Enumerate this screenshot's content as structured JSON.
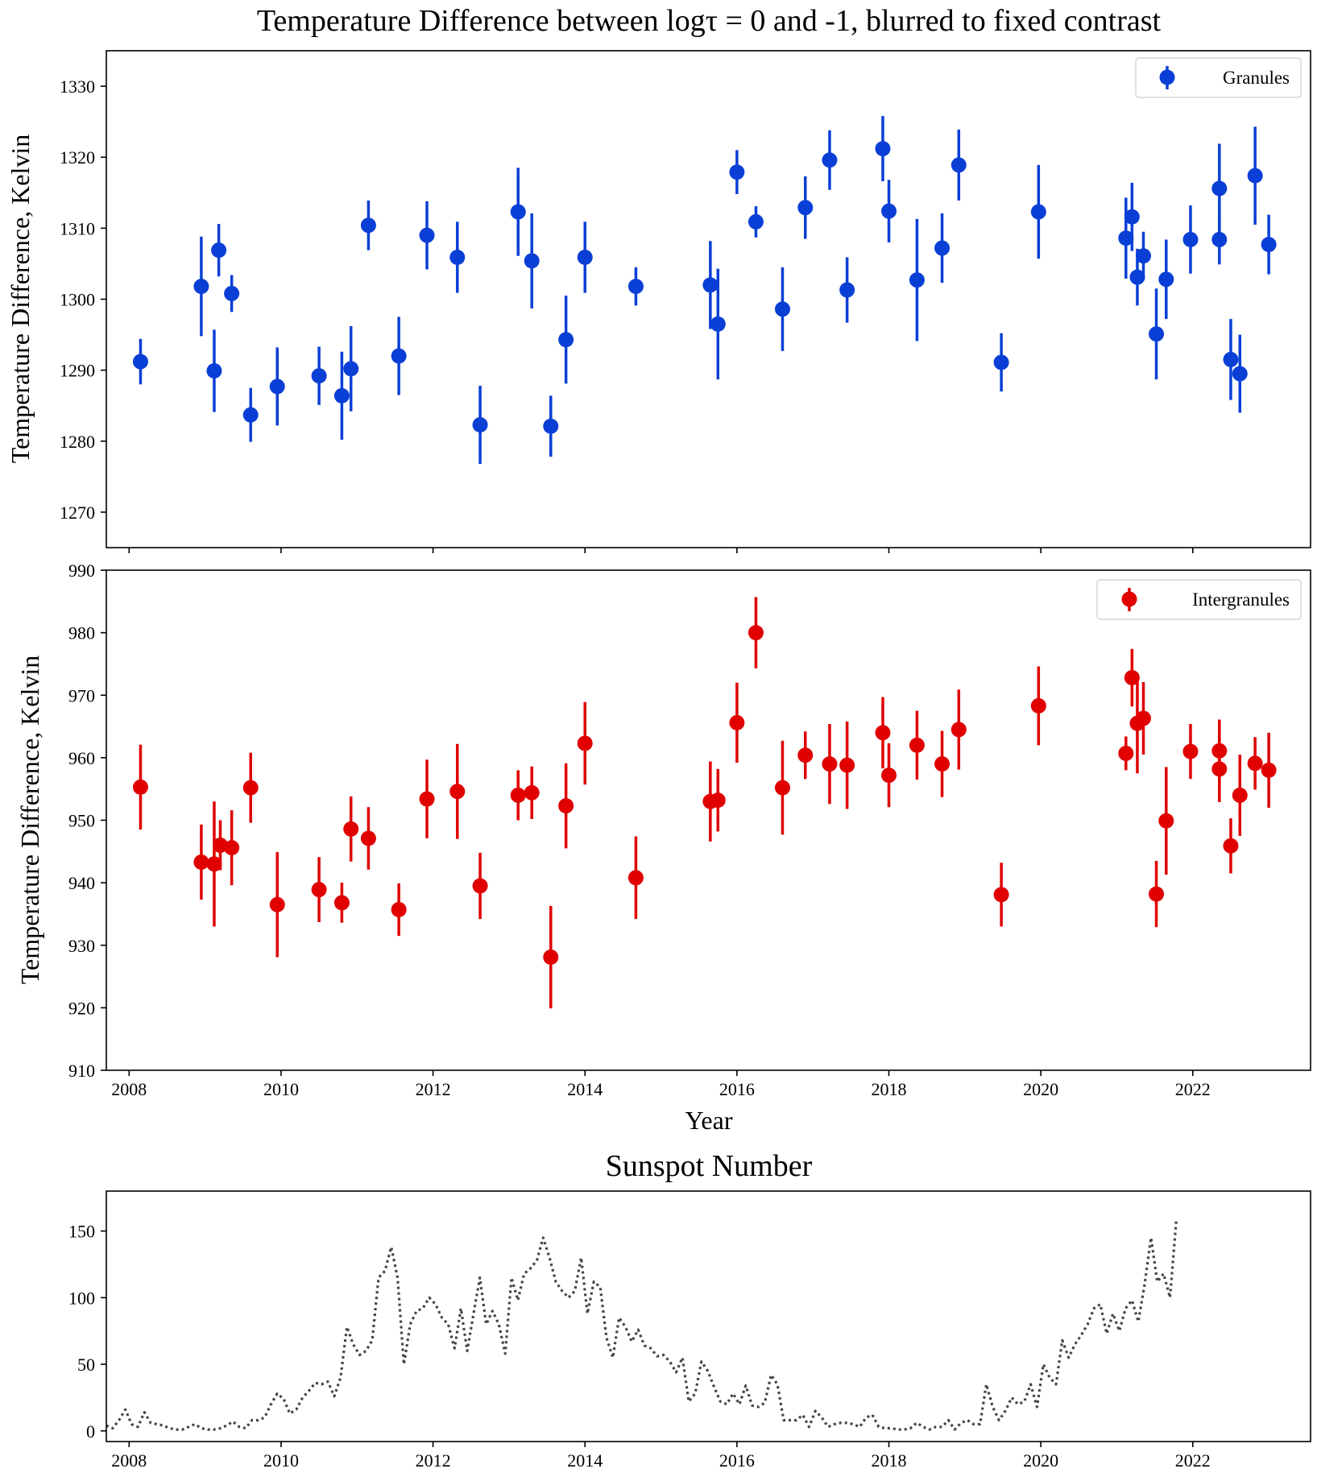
{
  "title": "Temperature Difference between logτ = 0 and -1, blurred to fixed contrast",
  "colors": {
    "granules": "#0a3fd6",
    "intergranules": "#e00000",
    "sunspot": "#444444"
  },
  "chart_data": [
    {
      "type": "scatter",
      "panel": "granules",
      "title": "Temperature Difference between logτ = 0 and -1, blurred to fixed contrast",
      "ylabel": "Temperature Difference, Kelvin",
      "xlim": [
        2007.7,
        2023.55
      ],
      "ylim": [
        1265,
        1335
      ],
      "yticks": [
        1270,
        1280,
        1290,
        1300,
        1310,
        1320,
        1330
      ],
      "xticks": [
        2008,
        2010,
        2012,
        2014,
        2016,
        2018,
        2020,
        2022
      ],
      "legend": {
        "label": "Granules",
        "position": "top-right"
      },
      "series": [
        {
          "name": "Granules",
          "points": [
            [
              2008.15,
              1291.2,
              3.2
            ],
            [
              2008.95,
              1301.8,
              7.0
            ],
            [
              2009.12,
              1289.9,
              5.8
            ],
            [
              2009.18,
              1306.9,
              3.7
            ],
            [
              2009.35,
              1300.8,
              2.6
            ],
            [
              2009.6,
              1283.7,
              3.8
            ],
            [
              2009.95,
              1287.7,
              5.5
            ],
            [
              2010.5,
              1289.2,
              4.1
            ],
            [
              2010.8,
              1286.4,
              6.2
            ],
            [
              2010.92,
              1290.2,
              6.0
            ],
            [
              2011.15,
              1310.4,
              3.5
            ],
            [
              2011.55,
              1292.0,
              5.5
            ],
            [
              2011.92,
              1309.0,
              4.8
            ],
            [
              2012.32,
              1305.9,
              5.0
            ],
            [
              2012.62,
              1282.3,
              5.5
            ],
            [
              2013.12,
              1312.3,
              6.2
            ],
            [
              2013.3,
              1305.4,
              6.7
            ],
            [
              2013.55,
              1282.1,
              4.3
            ],
            [
              2013.75,
              1294.3,
              6.2
            ],
            [
              2014.0,
              1305.9,
              5.0
            ],
            [
              2014.67,
              1301.8,
              2.7
            ],
            [
              2015.65,
              1302.0,
              6.2
            ],
            [
              2015.75,
              1296.5,
              7.8
            ],
            [
              2016.0,
              1317.9,
              3.1
            ],
            [
              2016.25,
              1310.9,
              2.2
            ],
            [
              2016.6,
              1298.6,
              5.9
            ],
            [
              2016.9,
              1312.9,
              4.4
            ],
            [
              2017.22,
              1319.6,
              4.2
            ],
            [
              2017.45,
              1301.3,
              4.6
            ],
            [
              2017.92,
              1321.2,
              4.6
            ],
            [
              2018.0,
              1312.4,
              4.4
            ],
            [
              2018.37,
              1302.7,
              8.6
            ],
            [
              2018.7,
              1307.2,
              4.9
            ],
            [
              2018.92,
              1318.9,
              5.0
            ],
            [
              2019.48,
              1291.1,
              4.1
            ],
            [
              2019.97,
              1312.3,
              6.6
            ],
            [
              2021.12,
              1308.6,
              5.7
            ],
            [
              2021.2,
              1311.6,
              4.8
            ],
            [
              2021.27,
              1303.1,
              4.0
            ],
            [
              2021.35,
              1306.1,
              3.4
            ],
            [
              2021.52,
              1295.1,
              6.4
            ],
            [
              2021.65,
              1302.8,
              5.6
            ],
            [
              2021.97,
              1308.4,
              4.8
            ],
            [
              2022.35,
              1315.6,
              6.3
            ],
            [
              2022.35,
              1308.4,
              3.5
            ],
            [
              2022.5,
              1291.5,
              5.7
            ],
            [
              2022.62,
              1289.5,
              5.5
            ],
            [
              2022.82,
              1317.4,
              6.9
            ],
            [
              2023.0,
              1307.7,
              4.2
            ]
          ]
        }
      ]
    },
    {
      "type": "scatter",
      "panel": "intergranules",
      "ylabel": "Temperature Difference, Kelvin",
      "xlabel": "Year",
      "xlim": [
        2007.7,
        2023.55
      ],
      "ylim": [
        910,
        990
      ],
      "yticks": [
        910,
        920,
        930,
        940,
        950,
        960,
        970,
        980,
        990
      ],
      "xticks": [
        2008,
        2010,
        2012,
        2014,
        2016,
        2018,
        2020,
        2022
      ],
      "legend": {
        "label": "Intergranules",
        "position": "top-right"
      },
      "series": [
        {
          "name": "Intergranules",
          "points": [
            [
              2008.15,
              955.3,
              6.8
            ],
            [
              2008.95,
              943.3,
              6.0
            ],
            [
              2009.12,
              943.0,
              10.0
            ],
            [
              2009.2,
              946.0,
              4.0
            ],
            [
              2009.35,
              945.6,
              6.0
            ],
            [
              2009.6,
              955.2,
              5.6
            ],
            [
              2009.95,
              936.5,
              8.4
            ],
            [
              2010.5,
              938.9,
              5.2
            ],
            [
              2010.8,
              936.8,
              3.2
            ],
            [
              2010.92,
              948.6,
              5.2
            ],
            [
              2011.15,
              947.1,
              5.0
            ],
            [
              2011.55,
              935.7,
              4.2
            ],
            [
              2011.92,
              953.4,
              6.3
            ],
            [
              2012.32,
              954.6,
              7.6
            ],
            [
              2012.62,
              939.5,
              5.3
            ],
            [
              2013.12,
              954.0,
              4.0
            ],
            [
              2013.3,
              954.4,
              4.2
            ],
            [
              2013.55,
              928.1,
              8.2
            ],
            [
              2013.75,
              952.3,
              6.8
            ],
            [
              2014.0,
              962.3,
              6.6
            ],
            [
              2014.67,
              940.8,
              6.6
            ],
            [
              2015.65,
              953.0,
              6.4
            ],
            [
              2015.75,
              953.2,
              5.0
            ],
            [
              2016.0,
              965.6,
              6.4
            ],
            [
              2016.25,
              980.0,
              5.7
            ],
            [
              2016.6,
              955.2,
              7.5
            ],
            [
              2016.9,
              960.4,
              3.8
            ],
            [
              2017.22,
              959.0,
              6.4
            ],
            [
              2017.45,
              958.8,
              7.0
            ],
            [
              2017.92,
              964.0,
              5.7
            ],
            [
              2018.0,
              957.2,
              5.1
            ],
            [
              2018.37,
              962.0,
              5.5
            ],
            [
              2018.7,
              959.0,
              5.3
            ],
            [
              2018.92,
              964.5,
              6.4
            ],
            [
              2019.48,
              938.1,
              5.1
            ],
            [
              2019.97,
              968.3,
              6.3
            ],
            [
              2021.12,
              960.7,
              2.7
            ],
            [
              2021.2,
              972.8,
              4.6
            ],
            [
              2021.27,
              965.5,
              8.0
            ],
            [
              2021.35,
              966.3,
              5.8
            ],
            [
              2021.52,
              938.2,
              5.3
            ],
            [
              2021.65,
              949.9,
              8.6
            ],
            [
              2021.97,
              961.0,
              4.4
            ],
            [
              2022.35,
              961.1,
              5.0
            ],
            [
              2022.35,
              958.2,
              5.3
            ],
            [
              2022.5,
              945.9,
              4.4
            ],
            [
              2022.62,
              954.0,
              6.5
            ],
            [
              2022.82,
              959.1,
              4.2
            ],
            [
              2023.0,
              958.0,
              6.0
            ]
          ]
        }
      ]
    },
    {
      "type": "line",
      "panel": "sunspot",
      "title": "Sunspot Number",
      "linestyle": "dotted",
      "xlim": [
        2007.7,
        2023.55
      ],
      "ylim": [
        -8,
        180
      ],
      "yticks": [
        0,
        50,
        100,
        150
      ],
      "xticks": [
        2008,
        2010,
        2012,
        2014,
        2016,
        2018,
        2020,
        2022
      ],
      "series": [
        {
          "name": "Sunspot Number",
          "x_start": 2007.7,
          "x_step": 0.08333,
          "values": [
            4,
            2,
            8,
            16,
            5,
            3,
            14,
            6,
            5,
            4,
            2,
            1,
            1,
            3,
            5,
            2,
            1,
            1,
            2,
            4,
            7,
            3,
            2,
            8,
            8,
            10,
            20,
            28,
            24,
            13,
            16,
            25,
            30,
            36,
            35,
            37,
            26,
            40,
            78,
            65,
            57,
            60,
            68,
            115,
            120,
            138,
            115,
            50,
            80,
            90,
            92,
            100,
            95,
            85,
            80,
            62,
            92,
            60,
            88,
            115,
            80,
            90,
            80,
            58,
            115,
            98,
            118,
            122,
            128,
            145,
            130,
            112,
            105,
            100,
            105,
            130,
            88,
            112,
            108,
            70,
            55,
            85,
            78,
            67,
            76,
            64,
            62,
            56,
            57,
            52,
            44,
            55,
            22,
            28,
            52,
            45,
            33,
            22,
            20,
            28,
            20,
            34,
            19,
            18,
            21,
            42,
            35,
            8,
            8,
            8,
            12,
            3,
            15,
            10,
            3,
            5,
            6,
            6,
            5,
            3,
            10,
            12,
            3,
            2,
            2,
            1,
            1,
            2,
            6,
            3,
            1,
            3,
            3,
            8,
            1,
            6,
            8,
            5,
            5,
            35,
            18,
            8,
            15,
            25,
            20,
            22,
            35,
            18,
            50,
            40,
            35,
            68,
            55,
            65,
            72,
            80,
            92,
            95,
            73,
            88,
            75,
            92,
            98,
            82,
            110,
            145,
            112,
            118,
            100,
            158
          ]
        }
      ]
    }
  ]
}
